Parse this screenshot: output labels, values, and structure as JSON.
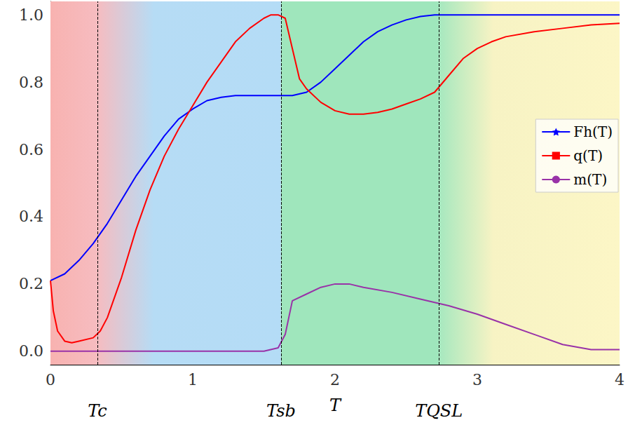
{
  "chart_data": {
    "type": "line",
    "xlabel": "T",
    "xlim": [
      0,
      4
    ],
    "xticks": [
      0,
      1,
      2,
      3,
      4
    ],
    "ylim": [
      -0.04,
      1.04
    ],
    "yticks": [
      {
        "value": 0,
        "label": "0.0"
      },
      {
        "value": 0.2,
        "label": "0.2"
      },
      {
        "value": 0.4,
        "label": "0.4"
      },
      {
        "value": 0.6,
        "label": "0.6"
      },
      {
        "value": 0.8,
        "label": "0.8"
      },
      {
        "value": 1,
        "label": "1.0"
      }
    ],
    "grid": true,
    "legend": "right",
    "annotations": [
      {
        "x": 0.33,
        "label": "Tc"
      },
      {
        "x": 1.62,
        "label": "Tsb"
      },
      {
        "x": 2.73,
        "label": "TQSL"
      }
    ],
    "series": [
      {
        "name": "Fh(T)",
        "color": "#0000ff",
        "marker": "star",
        "x": [
          0,
          0.1,
          0.2,
          0.3,
          0.4,
          0.5,
          0.6,
          0.7,
          0.8,
          0.9,
          1.0,
          1.1,
          1.2,
          1.3,
          1.4,
          1.5,
          1.6,
          1.7,
          1.8,
          1.9,
          2.0,
          2.1,
          2.2,
          2.3,
          2.4,
          2.5,
          2.6,
          2.7,
          3.0,
          3.5,
          4.0
        ],
        "values": [
          0.21,
          0.23,
          0.27,
          0.32,
          0.38,
          0.45,
          0.52,
          0.58,
          0.64,
          0.69,
          0.72,
          0.745,
          0.755,
          0.76,
          0.76,
          0.76,
          0.76,
          0.76,
          0.77,
          0.8,
          0.84,
          0.88,
          0.92,
          0.95,
          0.97,
          0.985,
          0.995,
          1.0,
          1.0,
          1.0,
          1.0
        ]
      },
      {
        "name": "q(T)",
        "color": "#ff0000",
        "marker": "square",
        "x": [
          0,
          0.02,
          0.05,
          0.1,
          0.15,
          0.2,
          0.3,
          0.35,
          0.4,
          0.5,
          0.6,
          0.7,
          0.8,
          0.9,
          1.0,
          1.1,
          1.2,
          1.3,
          1.4,
          1.5,
          1.55,
          1.6,
          1.65,
          1.7,
          1.75,
          1.8,
          1.9,
          2.0,
          2.1,
          2.2,
          2.3,
          2.4,
          2.5,
          2.6,
          2.7,
          2.8,
          2.9,
          3.0,
          3.1,
          3.2,
          3.4,
          3.6,
          3.8,
          4.0
        ],
        "values": [
          0.21,
          0.12,
          0.06,
          0.03,
          0.025,
          0.03,
          0.04,
          0.06,
          0.1,
          0.22,
          0.36,
          0.48,
          0.58,
          0.66,
          0.73,
          0.8,
          0.86,
          0.92,
          0.96,
          0.99,
          1.0,
          1.0,
          0.99,
          0.9,
          0.81,
          0.78,
          0.74,
          0.715,
          0.705,
          0.705,
          0.71,
          0.72,
          0.735,
          0.75,
          0.77,
          0.82,
          0.87,
          0.9,
          0.92,
          0.935,
          0.95,
          0.96,
          0.97,
          0.975
        ]
      },
      {
        "name": "m(T)",
        "color": "#9932a8",
        "marker": "circle",
        "x": [
          0,
          0.5,
          1.0,
          1.5,
          1.6,
          1.65,
          1.7,
          1.8,
          1.9,
          2.0,
          2.1,
          2.2,
          2.4,
          2.6,
          2.8,
          3.0,
          3.2,
          3.4,
          3.6,
          3.8,
          4.0
        ],
        "values": [
          0,
          0,
          0,
          0,
          0.01,
          0.05,
          0.15,
          0.17,
          0.19,
          0.2,
          0.2,
          0.19,
          0.175,
          0.155,
          0.135,
          0.11,
          0.08,
          0.05,
          0.02,
          0.005,
          0.005
        ]
      }
    ]
  }
}
